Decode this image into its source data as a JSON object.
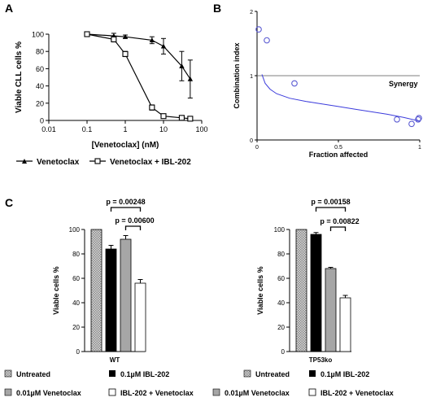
{
  "chart_data": [
    {
      "panel": "A",
      "type": "line",
      "xlabel": "[Venetoclax] (nM)",
      "ylabel": "Viable CLL cells %",
      "xscale": "log",
      "xlim": [
        0.01,
        100
      ],
      "ylim": [
        0,
        100
      ],
      "xticks": [
        "0.01",
        "0.1",
        "1",
        "10",
        "100"
      ],
      "yticks": [
        "0",
        "20",
        "40",
        "60",
        "80",
        "100"
      ],
      "grid": false,
      "legend": "bottom",
      "series": [
        {
          "name": "Venetoclax",
          "marker": "triangle",
          "x": [
            0.1,
            0.5,
            1,
            5,
            10,
            30,
            50
          ],
          "y": [
            100,
            98,
            97,
            93,
            86,
            63,
            48
          ],
          "err": [
            0,
            3,
            2,
            4,
            9,
            17,
            22
          ]
        },
        {
          "name": "Venetoclax + IBL-202",
          "marker": "square",
          "x": [
            0.1,
            0.5,
            1,
            5,
            10,
            30,
            50
          ],
          "y": [
            100,
            94,
            77,
            15,
            5,
            3,
            2
          ],
          "err": [
            0,
            3,
            3,
            3,
            1,
            1,
            1
          ]
        }
      ]
    },
    {
      "panel": "B",
      "type": "scatter",
      "xlabel": "Fraction affected",
      "ylabel": "Combination index",
      "xlim": [
        0,
        1
      ],
      "ylim": [
        0,
        2
      ],
      "xticks": [
        "0",
        "0.5",
        "1"
      ],
      "yticks": [
        "0",
        "1",
        "2"
      ],
      "reference_line": {
        "y": 1,
        "label": "Synergy"
      },
      "points": [
        {
          "x": 0.01,
          "y": 1.72
        },
        {
          "x": 0.06,
          "y": 1.55
        },
        {
          "x": 0.23,
          "y": 0.88
        },
        {
          "x": 0.86,
          "y": 0.32
        },
        {
          "x": 0.95,
          "y": 0.25
        },
        {
          "x": 0.99,
          "y": 0.32
        },
        {
          "x": 0.995,
          "y": 0.34
        }
      ],
      "fit": {
        "x": [
          0.03,
          0.05,
          0.08,
          0.12,
          0.2,
          0.3,
          0.4,
          0.5,
          0.6,
          0.7,
          0.8,
          0.9,
          0.97,
          1.0
        ],
        "y": [
          1.02,
          0.88,
          0.79,
          0.72,
          0.65,
          0.6,
          0.56,
          0.52,
          0.48,
          0.44,
          0.4,
          0.35,
          0.31,
          0.29
        ]
      }
    },
    {
      "panel": "C-WT",
      "type": "bar",
      "xlabel": "WT",
      "ylabel": "Viable cells %",
      "ylim": [
        0,
        100
      ],
      "yticks": [
        "0",
        "20",
        "40",
        "60",
        "80",
        "100"
      ],
      "legend": "bottom",
      "categories": [
        "Untreated",
        "0.1µM IBL-202",
        "0.01µM Venetoclax",
        "IBL-202 + Venetoclax"
      ],
      "values": [
        100,
        84,
        92,
        56
      ],
      "errors": [
        0,
        3,
        3,
        3
      ],
      "comparisons": [
        {
          "from": 1,
          "to": 3,
          "label": "p = 0.00248"
        },
        {
          "from": 2,
          "to": 3,
          "label": "p = 0.00600"
        }
      ]
    },
    {
      "panel": "C-TP53ko",
      "type": "bar",
      "xlabel": "TP53ko",
      "ylabel": "Viable cells %",
      "ylim": [
        0,
        100
      ],
      "yticks": [
        "0",
        "20",
        "40",
        "60",
        "80",
        "100"
      ],
      "legend": "bottom",
      "categories": [
        "Untreated",
        "0.1µM IBL-202",
        "0.01µM Venetoclax",
        "IBL-202 + Venetoclax"
      ],
      "values": [
        100,
        96,
        68,
        44
      ],
      "errors": [
        0,
        1.5,
        1,
        2
      ],
      "comparisons": [
        {
          "from": 1,
          "to": 3,
          "label": "p = 0.00158"
        },
        {
          "from": 2,
          "to": 3,
          "label": "p = 0.00822"
        }
      ]
    }
  ],
  "panel_labels": {
    "a": "A",
    "b": "B",
    "c": "C"
  },
  "legend_a": {
    "venetoclax": "Venetoclax",
    "combo": "Venetoclax + IBL-202"
  },
  "legend_c": {
    "untreated": "Untreated",
    "ibl": "0.1µM IBL-202",
    "ven": "0.01µM Venetoclax",
    "combo": "IBL-202 + Venetoclax"
  },
  "colors": {
    "bar_black": "#000000",
    "bar_grey": "#a6a6a6",
    "bar_hatch": "#bbbbbb",
    "fit_line": "#3c3cdc",
    "ci_points": "#5a5ad2"
  }
}
